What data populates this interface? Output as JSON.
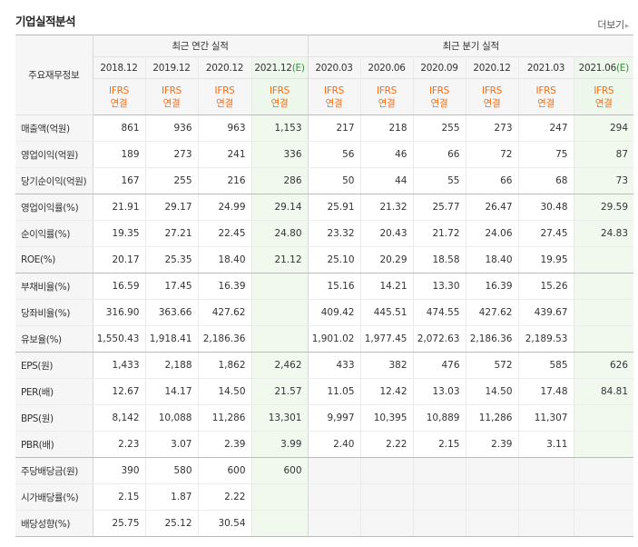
{
  "title": "기업실적분석",
  "more_label": "더보기",
  "header": {
    "row_label": "주요재무정보",
    "annual_group": "최근 연간 실적",
    "quarter_group": "최근 분기 실적",
    "annual_periods": [
      {
        "label": "2018.12",
        "est": ""
      },
      {
        "label": "2019.12",
        "est": ""
      },
      {
        "label": "2020.12",
        "est": ""
      },
      {
        "label": "2021.12",
        "est": "(E)"
      }
    ],
    "quarter_periods": [
      {
        "label": "2020.03",
        "est": ""
      },
      {
        "label": "2020.06",
        "est": ""
      },
      {
        "label": "2020.09",
        "est": ""
      },
      {
        "label": "2020.12",
        "est": ""
      },
      {
        "label": "2021.03",
        "est": ""
      },
      {
        "label": "2021.06",
        "est": "(E)"
      }
    ],
    "ifrs_line1": "IFRS",
    "ifrs_line2": "연결"
  },
  "rows": [
    {
      "label": "매출액(억원)",
      "values": [
        "861",
        "936",
        "963",
        "1,153",
        "217",
        "218",
        "255",
        "273",
        "247",
        "294"
      ]
    },
    {
      "label": "영업이익(억원)",
      "values": [
        "189",
        "273",
        "241",
        "336",
        "56",
        "46",
        "66",
        "72",
        "75",
        "87"
      ]
    },
    {
      "label": "당기순이익(억원)",
      "values": [
        "167",
        "255",
        "216",
        "286",
        "50",
        "44",
        "55",
        "66",
        "68",
        "73"
      ],
      "section_end": true
    },
    {
      "label": "영업이익률(%)",
      "values": [
        "21.91",
        "29.17",
        "24.99",
        "29.14",
        "25.91",
        "21.32",
        "25.77",
        "26.47",
        "30.48",
        "29.59"
      ]
    },
    {
      "label": "순이익률(%)",
      "values": [
        "19.35",
        "27.21",
        "22.45",
        "24.80",
        "23.32",
        "20.43",
        "21.72",
        "24.06",
        "27.45",
        "24.83"
      ]
    },
    {
      "label": "ROE(%)",
      "values": [
        "20.17",
        "25.35",
        "18.40",
        "21.12",
        "25.10",
        "20.29",
        "18.58",
        "18.40",
        "19.95",
        ""
      ],
      "section_end": true
    },
    {
      "label": "부채비율(%)",
      "values": [
        "16.59",
        "17.45",
        "16.39",
        "",
        "15.16",
        "14.21",
        "13.30",
        "16.39",
        "15.26",
        ""
      ]
    },
    {
      "label": "당좌비율(%)",
      "values": [
        "316.90",
        "363.66",
        "427.62",
        "",
        "409.42",
        "445.51",
        "474.55",
        "427.62",
        "439.67",
        ""
      ]
    },
    {
      "label": "유보율(%)",
      "values": [
        "1,550.43",
        "1,918.41",
        "2,186.36",
        "",
        "1,901.02",
        "1,977.45",
        "2,072.63",
        "2,186.36",
        "2,189.53",
        ""
      ],
      "section_end": true
    },
    {
      "label": "EPS(원)",
      "values": [
        "1,433",
        "2,188",
        "1,862",
        "2,462",
        "433",
        "382",
        "476",
        "572",
        "585",
        "626"
      ]
    },
    {
      "label": "PER(배)",
      "values": [
        "12.67",
        "14.17",
        "14.50",
        "21.57",
        "11.05",
        "12.42",
        "13.03",
        "14.50",
        "17.48",
        "84.81"
      ]
    },
    {
      "label": "BPS(원)",
      "values": [
        "8,142",
        "10,088",
        "11,286",
        "13,301",
        "9,997",
        "10,395",
        "10,889",
        "11,286",
        "11,307",
        ""
      ]
    },
    {
      "label": "PBR(배)",
      "values": [
        "2.23",
        "3.07",
        "2.39",
        "3.99",
        "2.40",
        "2.22",
        "2.15",
        "2.39",
        "3.11",
        ""
      ],
      "section_end": true
    },
    {
      "label": "주당배당금(원)",
      "values": [
        "390",
        "580",
        "600",
        "600",
        null,
        null,
        null,
        null,
        null,
        null
      ]
    },
    {
      "label": "시가배당률(%)",
      "values": [
        "2.15",
        "1.87",
        "2.22",
        "",
        null,
        null,
        null,
        null,
        null,
        null
      ]
    },
    {
      "label": "배당성향(%)",
      "values": [
        "25.75",
        "25.12",
        "30.54",
        "",
        null,
        null,
        null,
        null,
        null,
        null
      ]
    }
  ]
}
